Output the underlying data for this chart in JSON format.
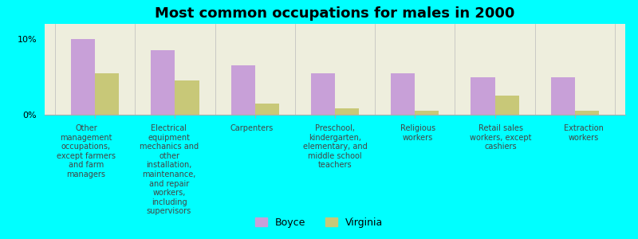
{
  "title": "Most common occupations for males in 2000",
  "background_color": "#00FFFF",
  "plot_bg_color": "#EEEEDD",
  "categories": [
    "Other\nmanagement\noccupations,\nexcept farmers\nand farm\nmanagers",
    "Electrical\nequipment\nmechanics and\nother\ninstallation,\nmaintenance,\nand repair\nworkers,\nincluding\nsupervisors",
    "Carpenters",
    "Preschool,\nkindergarten,\nelementary, and\nmiddle school\nteachers",
    "Religious\nworkers",
    "Retail sales\nworkers, except\ncashiers",
    "Extraction\nworkers"
  ],
  "boyce_values": [
    10.0,
    8.5,
    6.5,
    5.5,
    5.5,
    5.0,
    5.0
  ],
  "virginia_values": [
    5.5,
    4.5,
    1.5,
    0.8,
    0.5,
    2.5,
    0.5
  ],
  "boyce_color": "#C8A0D8",
  "virginia_color": "#C8C878",
  "ylim": [
    0,
    12
  ],
  "yticks": [
    0,
    10
  ],
  "ytick_labels": [
    "0%",
    "10%"
  ],
  "legend_boyce": "Boyce",
  "legend_virginia": "Virginia",
  "bar_width": 0.3,
  "label_fontsize": 7,
  "title_fontsize": 13
}
